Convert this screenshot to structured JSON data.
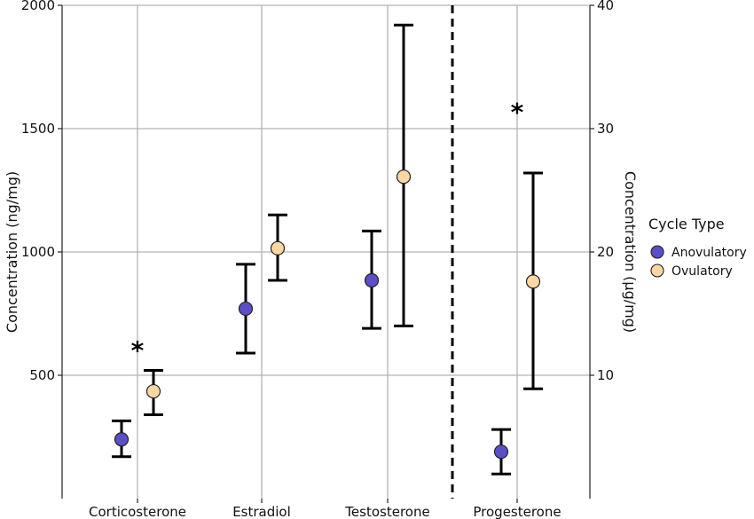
{
  "chart_data": {
    "type": "scatter",
    "title": "",
    "categories": [
      "Corticosterone",
      "Estradiol",
      "Testosterone",
      "Progesterone"
    ],
    "left_axis": {
      "label": "Concentration (ng/mg)",
      "ylim": [
        0,
        2000
      ],
      "ticks": [
        500,
        1000,
        1500,
        2000
      ],
      "applies_to": [
        "Corticosterone",
        "Estradiol",
        "Testosterone"
      ]
    },
    "right_axis": {
      "label": "Concentration (µg/mg)",
      "ylim": [
        0,
        40
      ],
      "ticks": [
        10,
        20,
        30,
        40
      ],
      "applies_to": [
        "Progesterone"
      ]
    },
    "grid": true,
    "divider_before": "Progesterone",
    "legend": {
      "title": "Cycle Type",
      "placement": "right",
      "items": [
        {
          "name": "Anovulatory",
          "color": "#5a4fc8"
        },
        {
          "name": "Ovulatory",
          "color": "#fbd7a3"
        }
      ]
    },
    "series": [
      {
        "name": "Anovulatory",
        "color": "#5a4fc8",
        "values": [
          240,
          770,
          885,
          3.8
        ],
        "lower": [
          170,
          590,
          690,
          2.0
        ],
        "upper": [
          315,
          950,
          1085,
          5.6
        ]
      },
      {
        "name": "Ovulatory",
        "color": "#fbd7a3",
        "values": [
          435,
          1015,
          1305,
          17.6
        ],
        "lower": [
          340,
          885,
          700,
          8.9
        ],
        "upper": [
          520,
          1150,
          1920,
          26.4
        ]
      }
    ],
    "annotations": [
      {
        "text": "*",
        "category": "Corticosterone",
        "axis": "left",
        "y": 610
      },
      {
        "text": "*",
        "category": "Progesterone",
        "axis": "right",
        "y": 31.5
      }
    ]
  }
}
